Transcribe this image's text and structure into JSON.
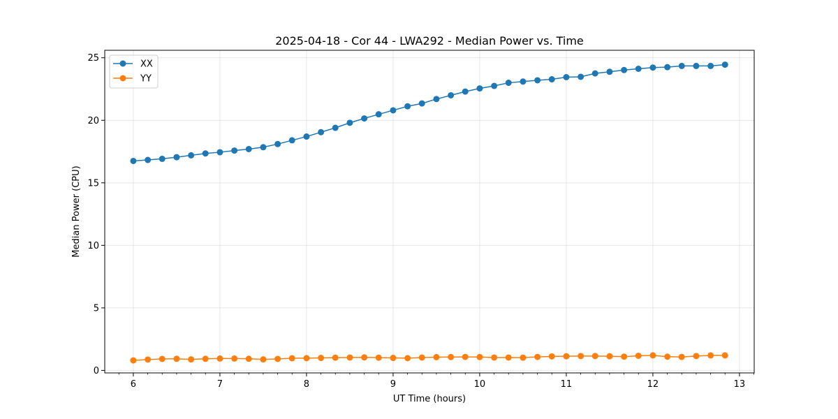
{
  "chart_data": {
    "type": "line",
    "title": "2025-04-18 - Cor 44 - LWA292 - Median Power vs. Time",
    "xlabel": "UT Time (hours)",
    "ylabel": "Median Power (CPU)",
    "xlim": [
      5.67,
      13.17
    ],
    "ylim": [
      -0.2,
      25.6
    ],
    "xticks": [
      6,
      7,
      8,
      9,
      10,
      11,
      12,
      13
    ],
    "yticks": [
      0,
      5,
      10,
      15,
      20,
      25
    ],
    "grid": true,
    "legend_position": "top-left",
    "x": [
      6.0,
      6.167,
      6.333,
      6.5,
      6.667,
      6.833,
      7.0,
      7.167,
      7.333,
      7.5,
      7.667,
      7.833,
      8.0,
      8.167,
      8.333,
      8.5,
      8.667,
      8.833,
      9.0,
      9.167,
      9.333,
      9.5,
      9.667,
      9.833,
      10.0,
      10.167,
      10.333,
      10.5,
      10.667,
      10.833,
      11.0,
      11.167,
      11.333,
      11.5,
      11.667,
      11.833,
      12.0,
      12.167,
      12.333,
      12.5,
      12.667,
      12.833
    ],
    "series": [
      {
        "name": "XX",
        "color": "#1f77b4",
        "values": [
          16.75,
          16.83,
          16.92,
          17.05,
          17.2,
          17.35,
          17.45,
          17.58,
          17.7,
          17.85,
          18.1,
          18.4,
          18.7,
          19.05,
          19.4,
          19.8,
          20.15,
          20.48,
          20.8,
          21.12,
          21.35,
          21.7,
          22.0,
          22.3,
          22.55,
          22.75,
          23.0,
          23.1,
          23.2,
          23.28,
          23.45,
          23.48,
          23.75,
          23.88,
          24.02,
          24.12,
          24.22,
          24.25,
          24.35,
          24.35,
          24.35,
          24.45
        ]
      },
      {
        "name": "YY",
        "color": "#ff7f0e",
        "values": [
          0.8,
          0.87,
          0.92,
          0.93,
          0.88,
          0.93,
          0.95,
          0.95,
          0.93,
          0.88,
          0.92,
          0.97,
          0.98,
          1.0,
          1.02,
          1.03,
          1.04,
          1.02,
          1.0,
          0.98,
          1.03,
          1.06,
          1.07,
          1.08,
          1.07,
          1.03,
          1.03,
          1.02,
          1.08,
          1.12,
          1.13,
          1.15,
          1.15,
          1.13,
          1.1,
          1.17,
          1.2,
          1.1,
          1.08,
          1.15,
          1.2,
          1.2
        ]
      }
    ]
  }
}
